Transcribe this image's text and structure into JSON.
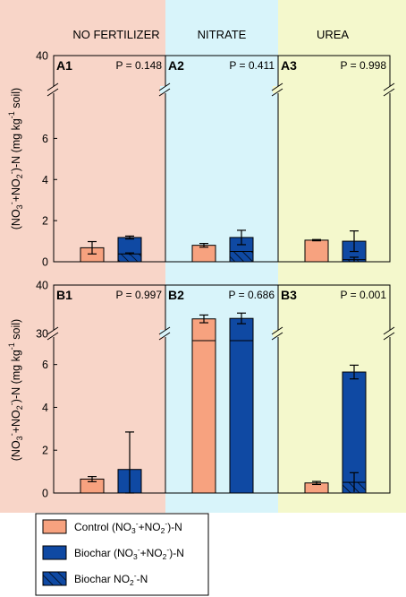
{
  "chart_data": {
    "type": "bar",
    "stacked": true,
    "columns": [
      "NO FERTILIZER",
      "NITRATE",
      "UREA"
    ],
    "column_colors": [
      "#f8d5c8",
      "#d8f4fa",
      "#f4f8cc"
    ],
    "series_colors": {
      "control": "#f7a27f",
      "biochar": "#0f49a3",
      "hatch": "#0f49a3"
    },
    "ylabel": "(NO3⁻+NO2⁻)-N (mg kg⁻¹ soil)",
    "ylabel_parts": {
      "a": "(NO",
      "b": "3",
      "c": "-",
      "d": "+NO",
      "e": "2",
      "f": "-",
      "g": ")-N (mg kg",
      "h": "-1",
      "i": " soil)"
    },
    "legend": {
      "items": [
        {
          "key": "control",
          "a": "Control (NO",
          "b": "3",
          "c": "-",
          "d": "+NO",
          "e": "2",
          "f": "-",
          "g": ")-N"
        },
        {
          "key": "biochar",
          "a": "Biochar (NO",
          "b": "3",
          "c": "-",
          "d": "+NO",
          "e": "2",
          "f": "-",
          "g": ")-N"
        },
        {
          "key": "nitrite",
          "a": "Biochar NO",
          "b": "2",
          "c": "-",
          "d": "-N"
        }
      ]
    },
    "rows": [
      {
        "axis": {
          "lower_range": [
            0,
            7.5
          ],
          "lower_ticks": [
            "0",
            "2",
            "4",
            "6"
          ],
          "upper_tick": "40"
        },
        "panels": [
          {
            "label": "A1",
            "p": "P = 0.148",
            "control": 0.68,
            "control_err": 0.3,
            "biochar": 1.18,
            "biochar_err": 0.07,
            "nitrite": 0.38,
            "nitrite_err": 0.05
          },
          {
            "label": "A2",
            "p": "P = 0.411",
            "control": 0.8,
            "control_err": 0.09,
            "biochar": 1.18,
            "biochar_err": 0.35,
            "nitrite": 0.5,
            "nitrite_err": 0.0
          },
          {
            "label": "A3",
            "p": "P = 0.998",
            "control": 1.05,
            "control_err": 0.03,
            "biochar": 1.0,
            "biochar_err": 0.5,
            "nitrite": 0.1,
            "nitrite_err": 0.12
          }
        ]
      },
      {
        "axis": {
          "lower_range": [
            0,
            7.2
          ],
          "lower_ticks": [
            "0",
            "2",
            "4",
            "6"
          ],
          "upper_ticks": [
            "30",
            "40"
          ]
        },
        "panels": [
          {
            "label": "B1",
            "p": "P = 0.997",
            "control": 0.65,
            "control_err": 0.12,
            "biochar": 1.1,
            "biochar_err": 1.75,
            "nitrite": null,
            "nitrite_err": null
          },
          {
            "label": "B2",
            "p": "P = 0.686",
            "control": 33.0,
            "control_err": 0.8,
            "biochar": 33.1,
            "biochar_err": 1.1,
            "nitrite": 0.0,
            "nitrite_err": 0.0
          },
          {
            "label": "B3",
            "p": "P = 0.001",
            "control": 0.47,
            "control_err": 0.07,
            "biochar": 5.65,
            "biochar_err": 0.32,
            "nitrite": 0.5,
            "nitrite_err": 0.45
          }
        ]
      }
    ]
  }
}
